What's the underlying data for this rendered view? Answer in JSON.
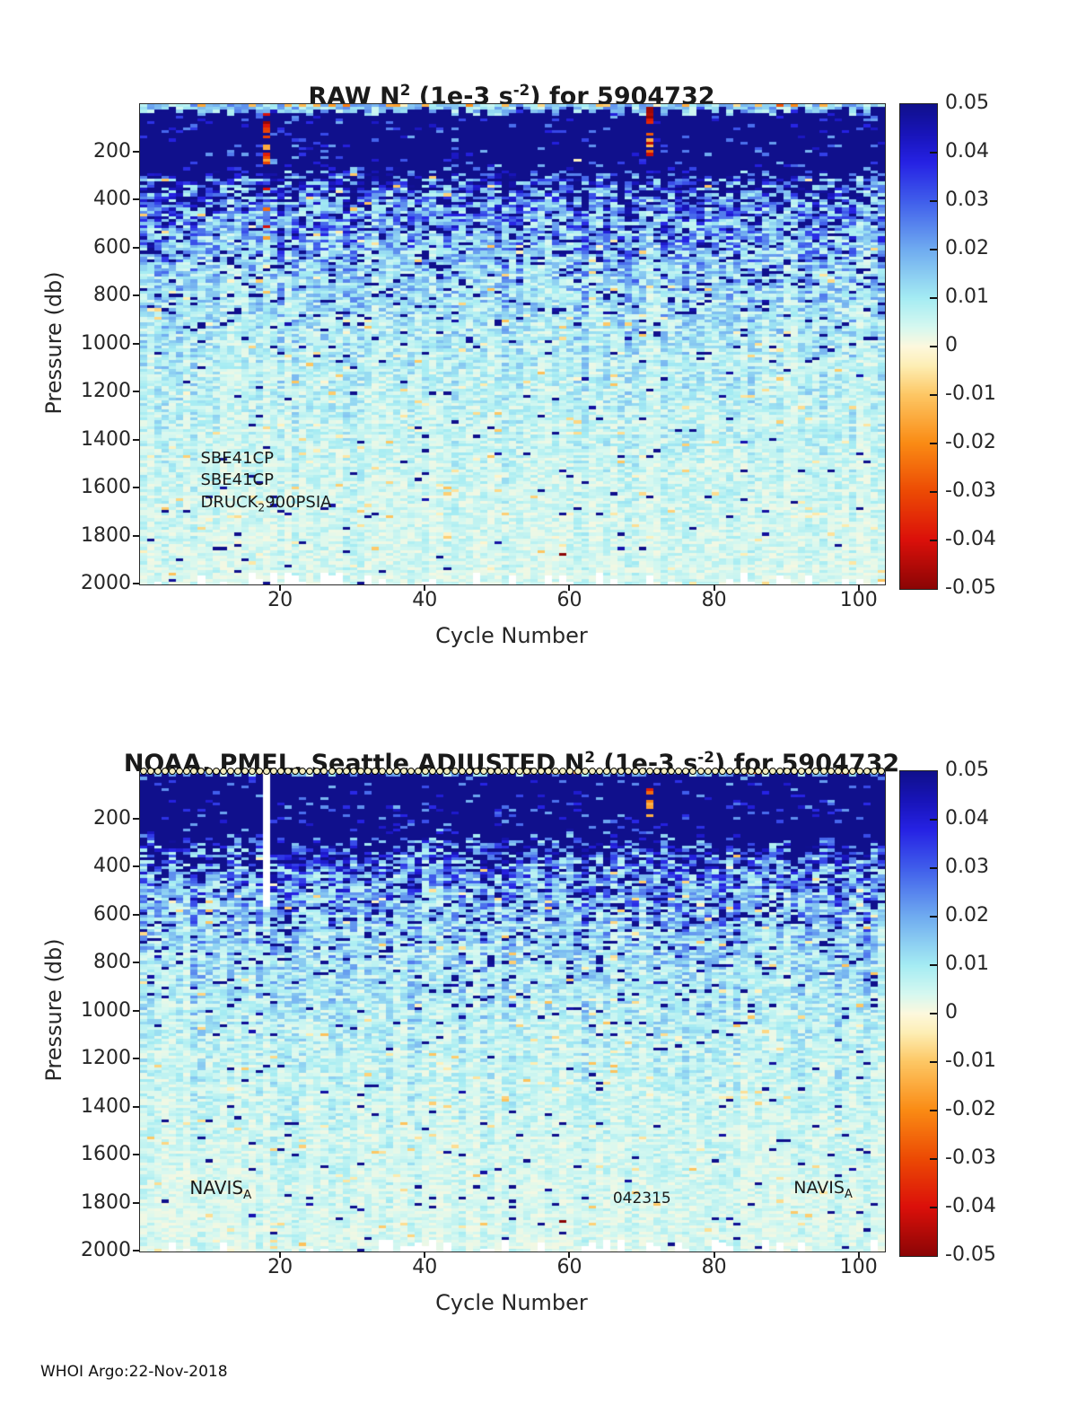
{
  "page": {
    "footer": "WHOI Argo:22-Nov-2018",
    "background": "#ffffff"
  },
  "colormap": {
    "description": "positive N2 maps to blues (dark navy at +0.05), zero to pale cream, negative to orange/red (dark maroon at -0.05)",
    "stops": [
      {
        "t": 0.0,
        "color": [
          16,
          16,
          140
        ]
      },
      {
        "t": 0.06,
        "color": [
          24,
          20,
          185
        ]
      },
      {
        "t": 0.12,
        "color": [
          38,
          34,
          228
        ]
      },
      {
        "t": 0.2,
        "color": [
          64,
          94,
          235
        ]
      },
      {
        "t": 0.3,
        "color": [
          112,
          172,
          240
        ]
      },
      {
        "t": 0.4,
        "color": [
          165,
          236,
          243
        ]
      },
      {
        "t": 0.46,
        "color": [
          214,
          248,
          240
        ]
      },
      {
        "t": 0.5,
        "color": [
          253,
          248,
          222
        ]
      },
      {
        "t": 0.54,
        "color": [
          253,
          238,
          180
        ]
      },
      {
        "t": 0.6,
        "color": [
          253,
          199,
          100
        ]
      },
      {
        "t": 0.7,
        "color": [
          250,
          139,
          20
        ]
      },
      {
        "t": 0.8,
        "color": [
          236,
          74,
          4
        ]
      },
      {
        "t": 0.9,
        "color": [
          219,
          16,
          10
        ]
      },
      {
        "t": 1.0,
        "color": [
          140,
          5,
          5
        ]
      }
    ]
  },
  "chart_data": [
    {
      "id": "raw",
      "type": "heatmap",
      "title_segments": [
        {
          "t": "RAW N",
          "s": ""
        },
        {
          "t": "2",
          "s": "sup"
        },
        {
          "t": " (1e-3 s",
          "s": ""
        },
        {
          "t": "-2",
          "s": "sup"
        },
        {
          "t": ") for 5904732",
          "s": ""
        }
      ],
      "xlabel": "Cycle Number",
      "ylabel": "Pressure (db)",
      "x_range": [
        1,
        103
      ],
      "y_range": [
        0,
        2000
      ],
      "x_ticks": [
        20,
        40,
        60,
        80,
        100
      ],
      "y_ticks": [
        200,
        400,
        600,
        800,
        1000,
        1200,
        1400,
        1600,
        1800,
        2000
      ],
      "colorbar": {
        "max": 0.05,
        "min": -0.05,
        "tick_labels": [
          "0.05",
          "0.04",
          "0.03",
          "0.02",
          "0.01",
          "0",
          "-0.01",
          "-0.02",
          "-0.03",
          "-0.04",
          "-0.05"
        ]
      },
      "annotations": [
        {
          "segments": [
            {
              "t": "SBE41CP",
              "s": ""
            }
          ],
          "cycle": 9,
          "pressure": 1490
        },
        {
          "segments": [
            {
              "t": "SBE41CP",
              "s": ""
            }
          ],
          "cycle": 9,
          "pressure": 1578
        },
        {
          "segments": [
            {
              "t": "DRUCK",
              "s": ""
            },
            {
              "t": "2",
              "s": "sub"
            },
            {
              "t": "900PSIA",
              "s": ""
            }
          ],
          "cycle": 9,
          "pressure": 1672
        }
      ],
      "depth_profile": {
        "pressure_db": [
          0,
          25,
          45,
          70,
          150,
          210,
          260,
          320,
          420,
          550,
          700,
          900,
          1100,
          1400,
          1700,
          2000
        ],
        "mean_value": [
          0.01,
          0.018,
          0.045,
          0.075,
          0.08,
          0.065,
          0.04,
          0.026,
          0.019,
          0.015,
          0.011,
          0.0085,
          0.0065,
          0.005,
          0.004,
          0.0035
        ]
      },
      "features": {
        "seed": 42,
        "surface_light_layer_db": [
          14,
          48
        ],
        "thermocline_bottom_db": [
          180,
          330
        ],
        "top_row_negative_speck_prob": 0.22,
        "bottom_missing_gap_prob": 0.35,
        "hot_columns": [
          {
            "cycle": 18,
            "pressure_from": 40,
            "pressure_to": 270,
            "density": 0.6
          },
          {
            "cycle": 18,
            "pressure_from": 270,
            "pressure_to": 560,
            "density": 0.18
          },
          {
            "cycle": 71,
            "pressure_from": 0,
            "pressure_to": 215,
            "density": 0.7
          }
        ],
        "missing_columns": [],
        "deep_red_dash": {
          "cycle": 59,
          "pressure": 1880
        },
        "cycle_markers_on_top": false
      }
    },
    {
      "id": "adjusted",
      "type": "heatmap",
      "title_segments": [
        {
          "t": "NOAA, PMEL, Seattle  ADJUSTED N",
          "s": ""
        },
        {
          "t": "2",
          "s": "sup"
        },
        {
          "t": " (1e-3 s",
          "s": ""
        },
        {
          "t": "-2",
          "s": "sup"
        },
        {
          "t": ") for 5904732",
          "s": ""
        }
      ],
      "xlabel": "Cycle Number",
      "ylabel": "Pressure (db)",
      "x_range": [
        1,
        103
      ],
      "y_range": [
        0,
        2000
      ],
      "x_ticks": [
        20,
        40,
        60,
        80,
        100
      ],
      "y_ticks": [
        200,
        400,
        600,
        800,
        1000,
        1200,
        1400,
        1600,
        1800,
        2000
      ],
      "colorbar": {
        "max": 0.05,
        "min": -0.05,
        "tick_labels": [
          "0.05",
          "0.04",
          "0.03",
          "0.02",
          "0.01",
          "0",
          "-0.01",
          "-0.02",
          "-0.03",
          "-0.04",
          "-0.05"
        ]
      },
      "annotations": [
        {
          "segments": [
            {
              "t": "NAVIS",
              "s": ""
            },
            {
              "t": "A",
              "s": "sub"
            }
          ],
          "cycle": 7.5,
          "pressure": 1750
        },
        {
          "segments": [
            {
              "t": "042315",
              "s": ""
            }
          ],
          "cycle": 66,
          "pressure": 1795
        },
        {
          "segments": [
            {
              "t": "NAVIS",
              "s": ""
            },
            {
              "t": "A",
              "s": "sub"
            }
          ],
          "cycle": 91,
          "pressure": 1750
        }
      ],
      "depth_profile": {
        "pressure_db": [
          0,
          25,
          45,
          70,
          150,
          210,
          260,
          320,
          420,
          550,
          700,
          900,
          1100,
          1400,
          1700,
          2000
        ],
        "mean_value": [
          0.01,
          0.018,
          0.045,
          0.075,
          0.08,
          0.065,
          0.04,
          0.026,
          0.019,
          0.015,
          0.011,
          0.0085,
          0.0065,
          0.005,
          0.004,
          0.0035
        ]
      },
      "features": {
        "seed": 1337,
        "surface_light_layer_db": [
          4,
          24
        ],
        "thermocline_bottom_db": [
          190,
          340
        ],
        "top_row_negative_speck_prob": 0.1,
        "bottom_missing_gap_prob": 0.35,
        "hot_columns": [
          {
            "cycle": 71,
            "pressure_from": 55,
            "pressure_to": 215,
            "density": 0.45
          }
        ],
        "missing_columns": [
          {
            "cycle": 18,
            "pressure_from": 0,
            "pressure_to": 560
          }
        ],
        "deep_red_dash": {
          "cycle": 59,
          "pressure": 1880
        },
        "cycle_markers_on_top": true,
        "marker": {
          "count": 103,
          "fill": "#f2ecc0",
          "stroke": "#000000"
        }
      }
    }
  ]
}
